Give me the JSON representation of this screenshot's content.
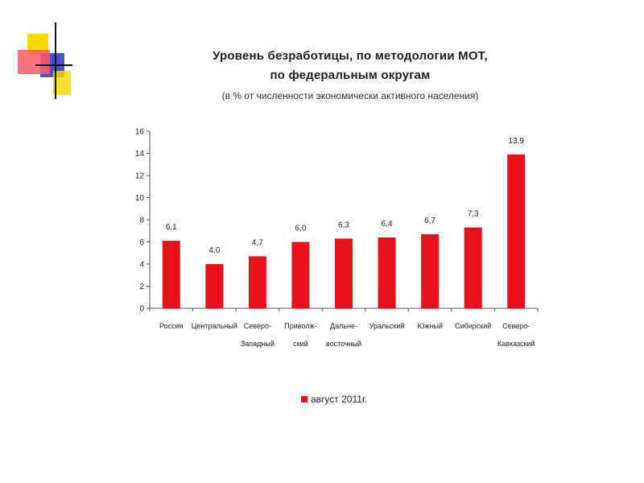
{
  "title_line1": "Уровень безработицы, по методологии МОТ,",
  "title_line2": "по федеральным округам",
  "subtitle": "(в % от численности экономически активного населения)",
  "colors": {
    "bar": "#e8101c",
    "axis": "#555555"
  },
  "chart_data": {
    "type": "bar",
    "categories": [
      [
        "Россия"
      ],
      [
        "Центральный"
      ],
      [
        "Северо-",
        "Западный"
      ],
      [
        "Приволж-",
        "ский"
      ],
      [
        "Дальне-",
        "восточный"
      ],
      [
        "Уральский"
      ],
      [
        "Южный"
      ],
      [
        "Сибирский"
      ],
      [
        "Северо-",
        "Кавказский"
      ]
    ],
    "series": [
      {
        "name": "август 2011г.",
        "values": [
          6.1,
          4.0,
          4.7,
          6.0,
          6.3,
          6.4,
          6.7,
          7.3,
          13.9
        ],
        "labels": [
          "6,1",
          "4,0",
          "4,7",
          "6,0",
          "6,3",
          "6,4",
          "6,7",
          "7,3",
          "13,9"
        ]
      }
    ],
    "yticks": [
      0,
      2,
      4,
      6,
      8,
      10,
      12,
      14,
      16
    ],
    "ylim": [
      0,
      16
    ],
    "grid": false,
    "legend_position": "bottom"
  }
}
